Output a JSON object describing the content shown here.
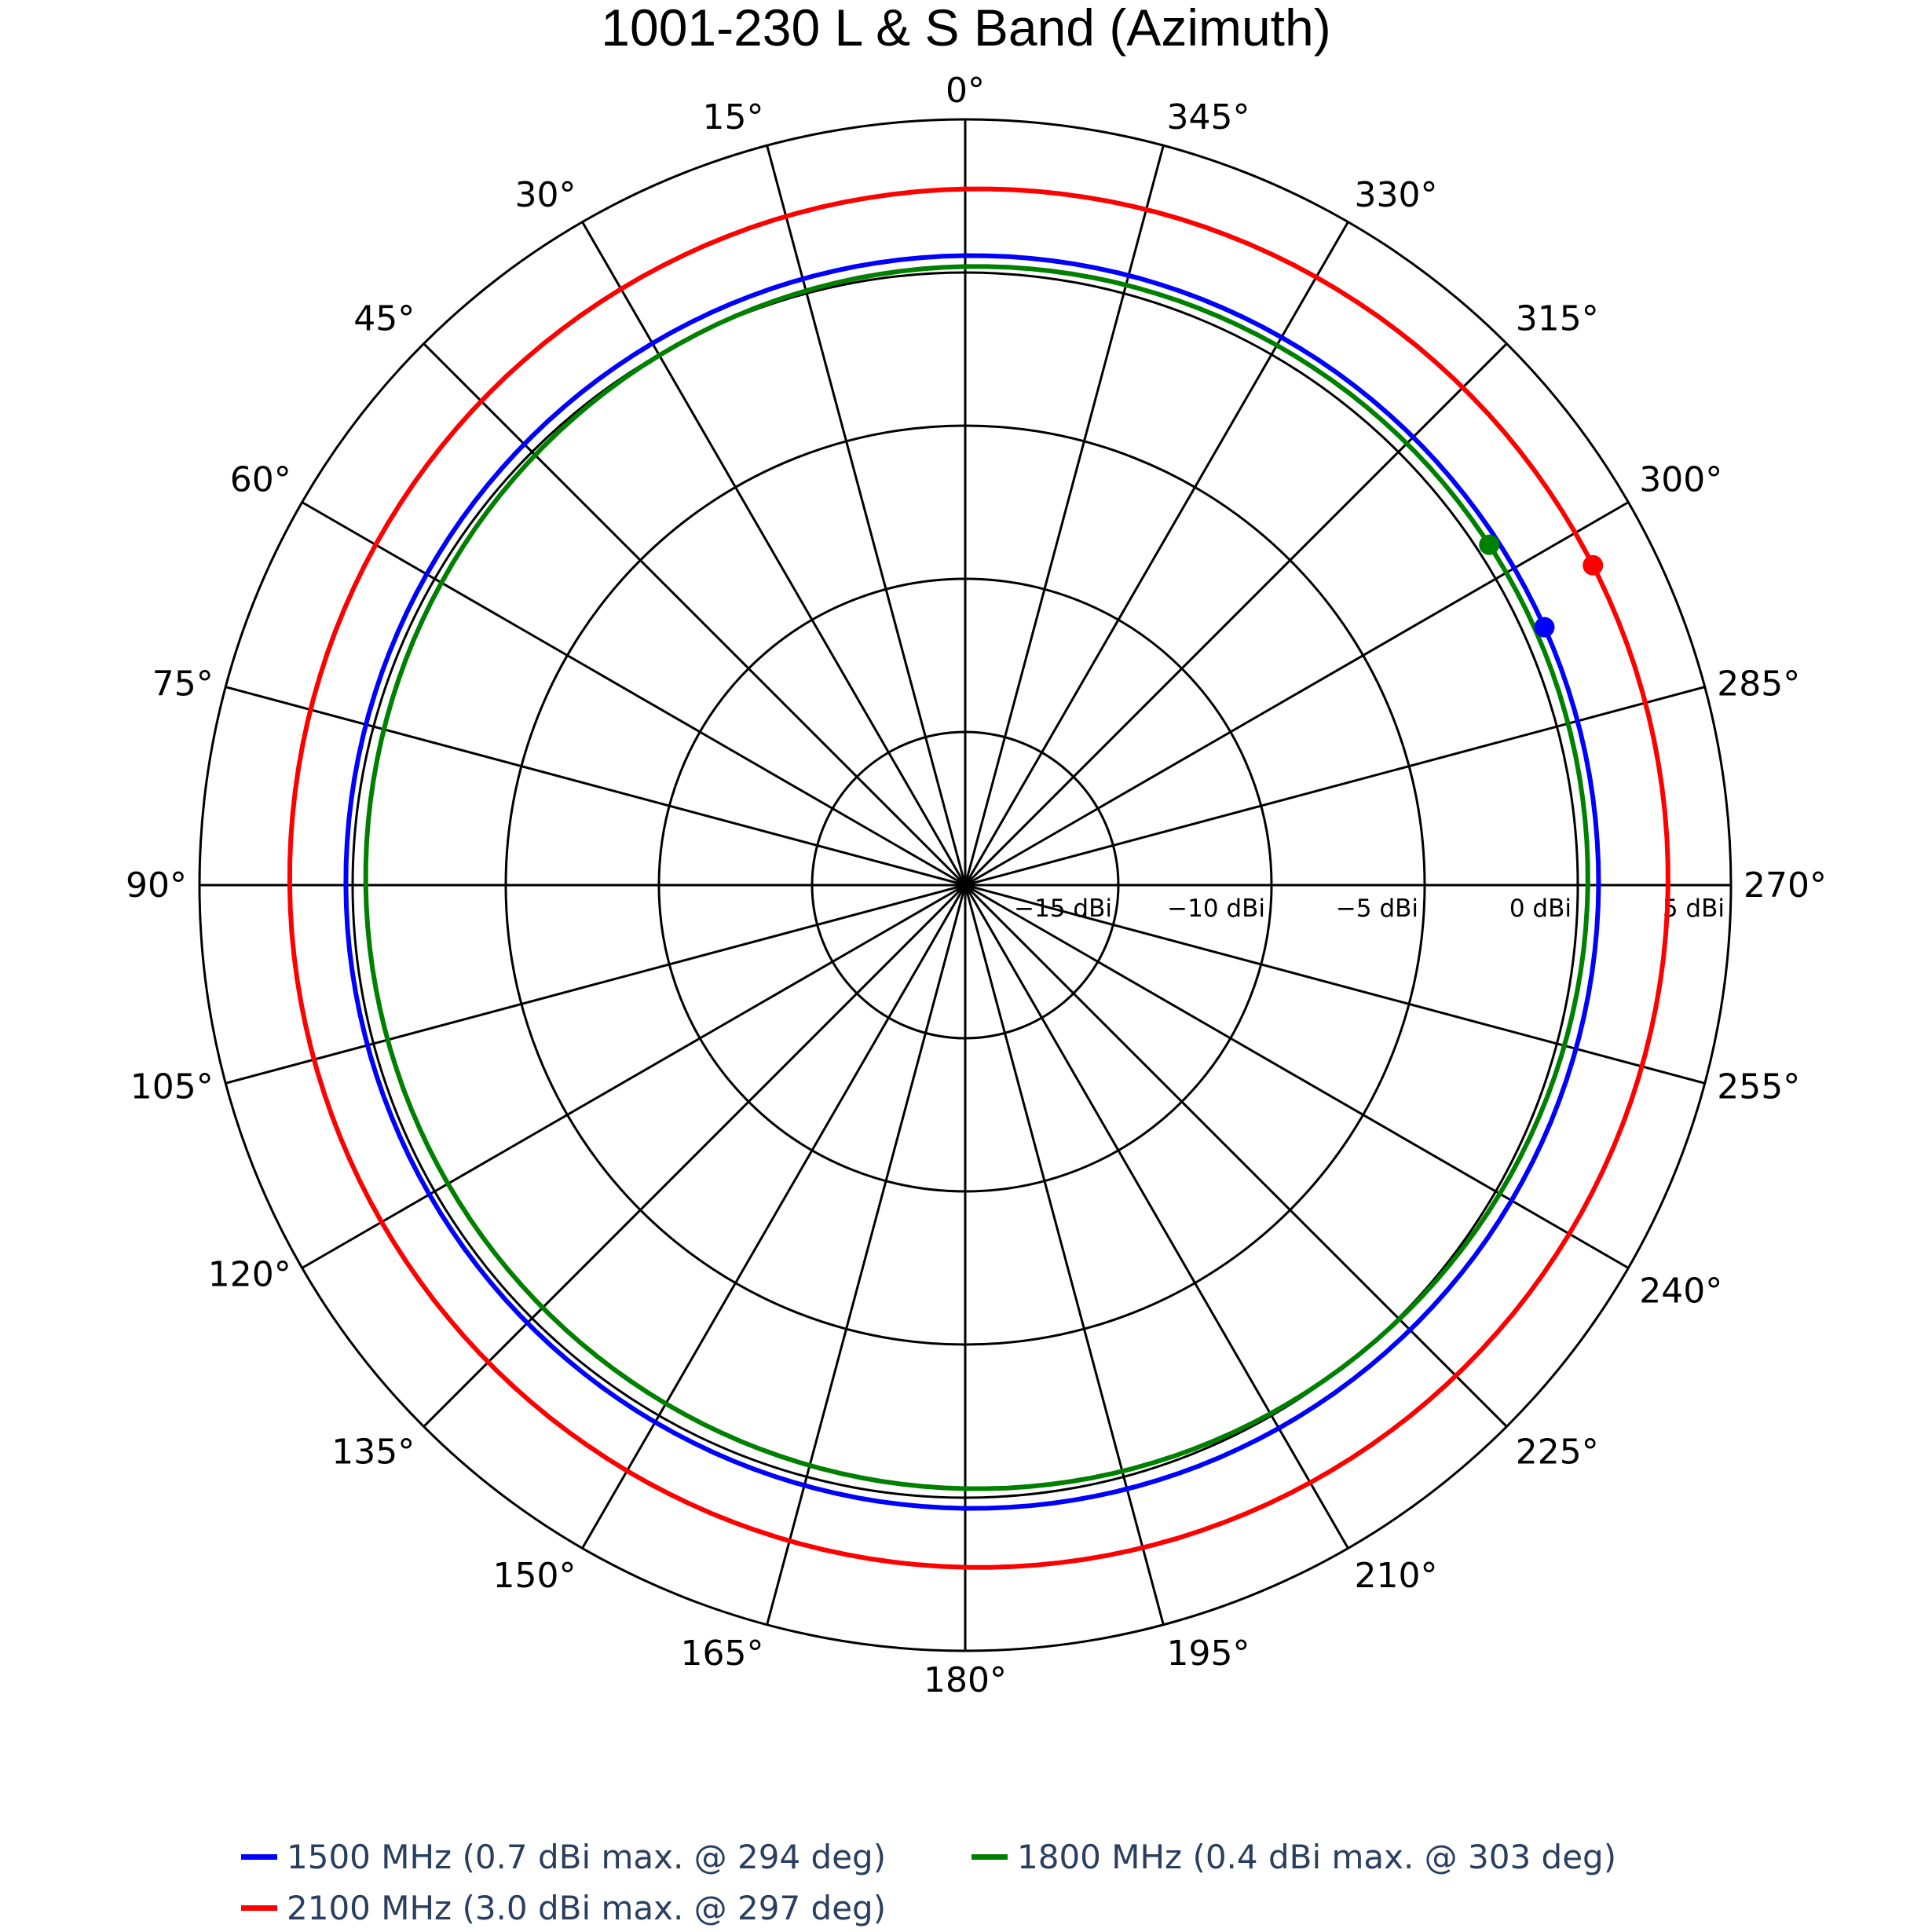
{
  "title": "1001-230 L & S Band (Azimuth)",
  "colors": {
    "grid": "#000000",
    "legend_text": "#2a3f5f",
    "series_1500": "#0000ff",
    "series_1800": "#008000",
    "series_2100": "#ff0000"
  },
  "legend": [
    {
      "label": "1500 MHz (0.7 dBi max. @ 294 deg)",
      "color": "#0000ff"
    },
    {
      "label": "1800 MHz (0.4 dBi max. @ 303 deg)",
      "color": "#008000"
    },
    {
      "label": "2100 MHz (3.0 dBi max. @ 297 deg)",
      "color": "#ff0000"
    }
  ],
  "chart_data": {
    "type": "polar-line",
    "title": "1001-230 L & S Band (Azimuth)",
    "angular_axis": {
      "direction": "counterclockwise",
      "rotation_zero": "top",
      "tick_labels": [
        "0°",
        "15°",
        "30°",
        "45°",
        "60°",
        "75°",
        "90°",
        "105°",
        "120°",
        "135°",
        "150°",
        "165°",
        "180°",
        "195°",
        "210°",
        "225°",
        "240°",
        "255°",
        "270°",
        "285°",
        "300°",
        "315°",
        "330°",
        "345°"
      ],
      "tick_step_deg": 15
    },
    "radial_axis": {
      "range": [
        -20,
        5
      ],
      "unit": "dBi",
      "tick_values": [
        -15,
        -10,
        -5,
        0,
        5
      ],
      "tick_labels": [
        "−15 dBi",
        "−10 dBi",
        "−5 dBi",
        "0 dBi",
        "5 dBi"
      ],
      "label_angle_deg": 270
    },
    "grid": true,
    "legend_position": "bottom",
    "series": [
      {
        "name": "1500 MHz (0.7 dBi max. @ 294 deg)",
        "color": "#0000ff",
        "mean_dbi": 0.45,
        "max_dbi": 0.7,
        "max_at_deg": 294,
        "samples": {
          "0": 0.3,
          "90": 0.46,
          "180": 0.5,
          "270": 0.59
        }
      },
      {
        "name": "1800 MHz (0.4 dBi max. @ 303 deg)",
        "color": "#008000",
        "mean_dbi": -0.05,
        "max_dbi": 0.4,
        "max_at_deg": 303,
        "samples": {
          "0": -0.13,
          "90": -0.33,
          "180": -0.13,
          "270": 0.2
        }
      },
      {
        "name": "2100 MHz (3.0 dBi max. @ 297 deg)",
        "color": "#ff0000",
        "mean_dbi": 2.5,
        "max_dbi": 3.0,
        "max_at_deg": 297,
        "samples": {
          "0": 2.4,
          "90": 2.3,
          "180": 2.4,
          "270": 2.93
        }
      }
    ]
  }
}
